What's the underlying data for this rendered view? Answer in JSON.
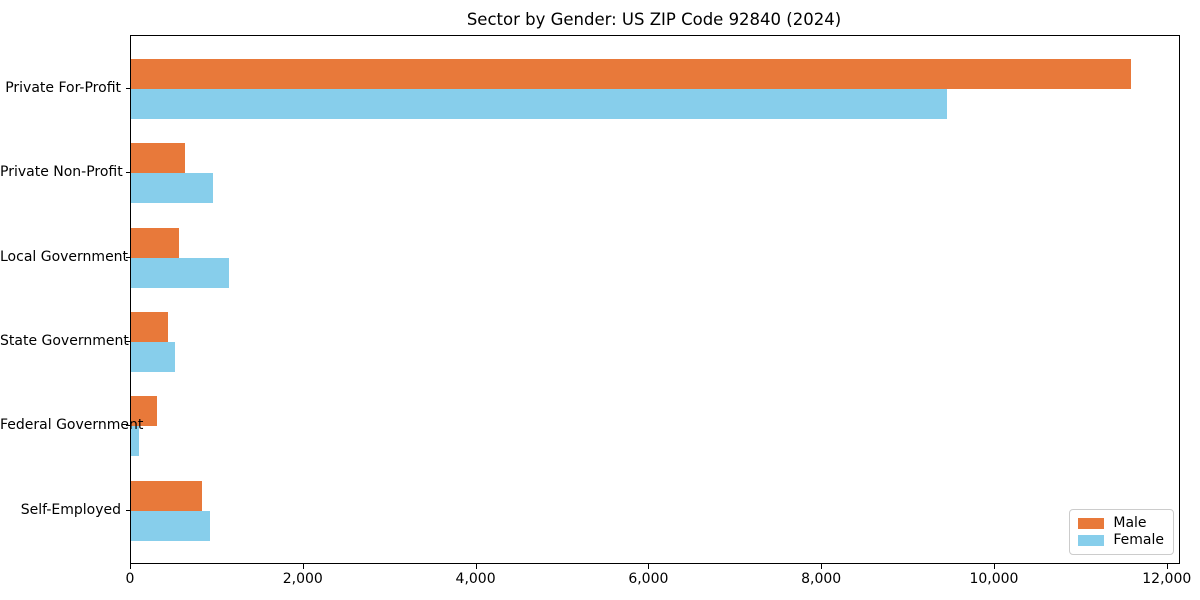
{
  "chart_data": {
    "type": "bar",
    "orientation": "horizontal",
    "title": "Sector by Gender: US ZIP Code 92840 (2024)",
    "categories": [
      "Private For-Profit",
      "Private Non-Profit",
      "Local Government",
      "State Government",
      "Federal Government",
      "Self-Employed"
    ],
    "series": [
      {
        "name": "Male",
        "color": "#e8793a",
        "values": [
          11570,
          625,
          555,
          430,
          300,
          820
        ]
      },
      {
        "name": "Female",
        "color": "#87ceeb",
        "values": [
          9450,
          950,
          1135,
          510,
          90,
          915
        ]
      }
    ],
    "xlabel": "",
    "ylabel": "",
    "xlim": [
      0,
      12130
    ],
    "x_ticks": [
      {
        "label": "0",
        "value": 0
      },
      {
        "label": "2,000",
        "value": 2000
      },
      {
        "label": "4,000",
        "value": 4000
      },
      {
        "label": "6,000",
        "value": 6000
      },
      {
        "label": "8,000",
        "value": 8000
      },
      {
        "label": "10,000",
        "value": 10000
      },
      {
        "label": "12,000",
        "value": 12000
      }
    ],
    "grid": false,
    "legend": {
      "position": "lower-right",
      "entries": [
        "Male",
        "Female"
      ]
    }
  }
}
